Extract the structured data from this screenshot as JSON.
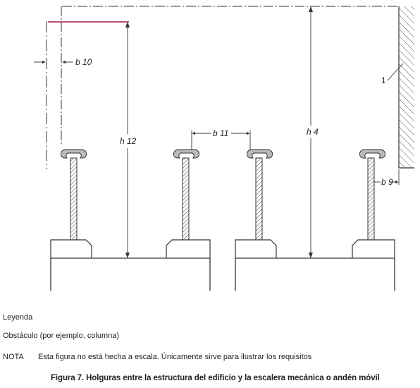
{
  "figure": {
    "labels": {
      "b10": "b 10",
      "b11": "b 11",
      "b9": "b 9",
      "h12": "h 12",
      "h4": "h 4",
      "obstacle_number": "1"
    },
    "colors": {
      "line": "#333333",
      "accent_line": "#a0183a",
      "hatch": "#555555",
      "balustrade_fill": "#9a9a9a"
    }
  },
  "legend": {
    "title": "Leyenda",
    "item_1": "Obstáculo (por ejemplo, columna)"
  },
  "note": {
    "label": "NOTA",
    "text": "Esta figura no está hecha a escala. Únicamente sirve para ilustrar los requisitos"
  },
  "caption": "Figura 7. Holguras entre la estructura del edificio y la escalera mecánica o andén móvil"
}
